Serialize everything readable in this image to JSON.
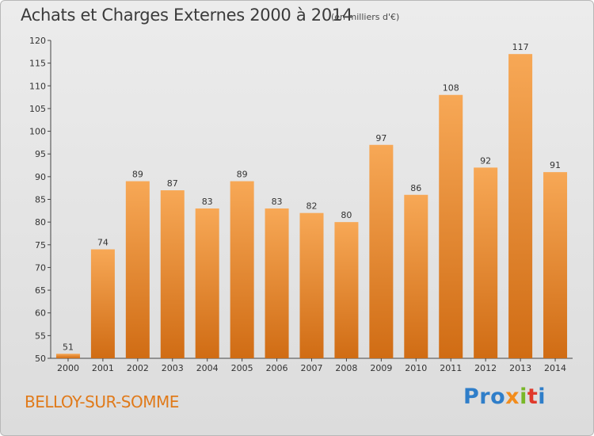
{
  "header": {
    "title": "Achats et Charges Externes 2000 à 2014",
    "subtitle": "(en milliers d'€)"
  },
  "footer": {
    "commune": "BELLOY-SUR-SOMME",
    "brand": [
      "Pro",
      "x",
      "i",
      "t",
      "i"
    ]
  },
  "chart_data": {
    "type": "bar",
    "title": "Achats et Charges Externes 2000 à 2014",
    "subtitle": "(en milliers d'€)",
    "xlabel": "",
    "ylabel": "",
    "categories": [
      "2000",
      "2001",
      "2002",
      "2003",
      "2004",
      "2005",
      "2006",
      "2007",
      "2008",
      "2009",
      "2010",
      "2011",
      "2012",
      "2013",
      "2014"
    ],
    "values": [
      51,
      74,
      89,
      87,
      83,
      89,
      83,
      82,
      80,
      97,
      86,
      108,
      92,
      117,
      91
    ],
    "ylim": [
      50,
      120
    ],
    "yticks": [
      50,
      55,
      60,
      65,
      70,
      75,
      80,
      85,
      90,
      95,
      100,
      105,
      110,
      115,
      120
    ],
    "grid": false,
    "legend": "none",
    "colors": {
      "bar_top": "#f7a856",
      "bar_bottom": "#d06c14",
      "axis": "#444444"
    }
  }
}
